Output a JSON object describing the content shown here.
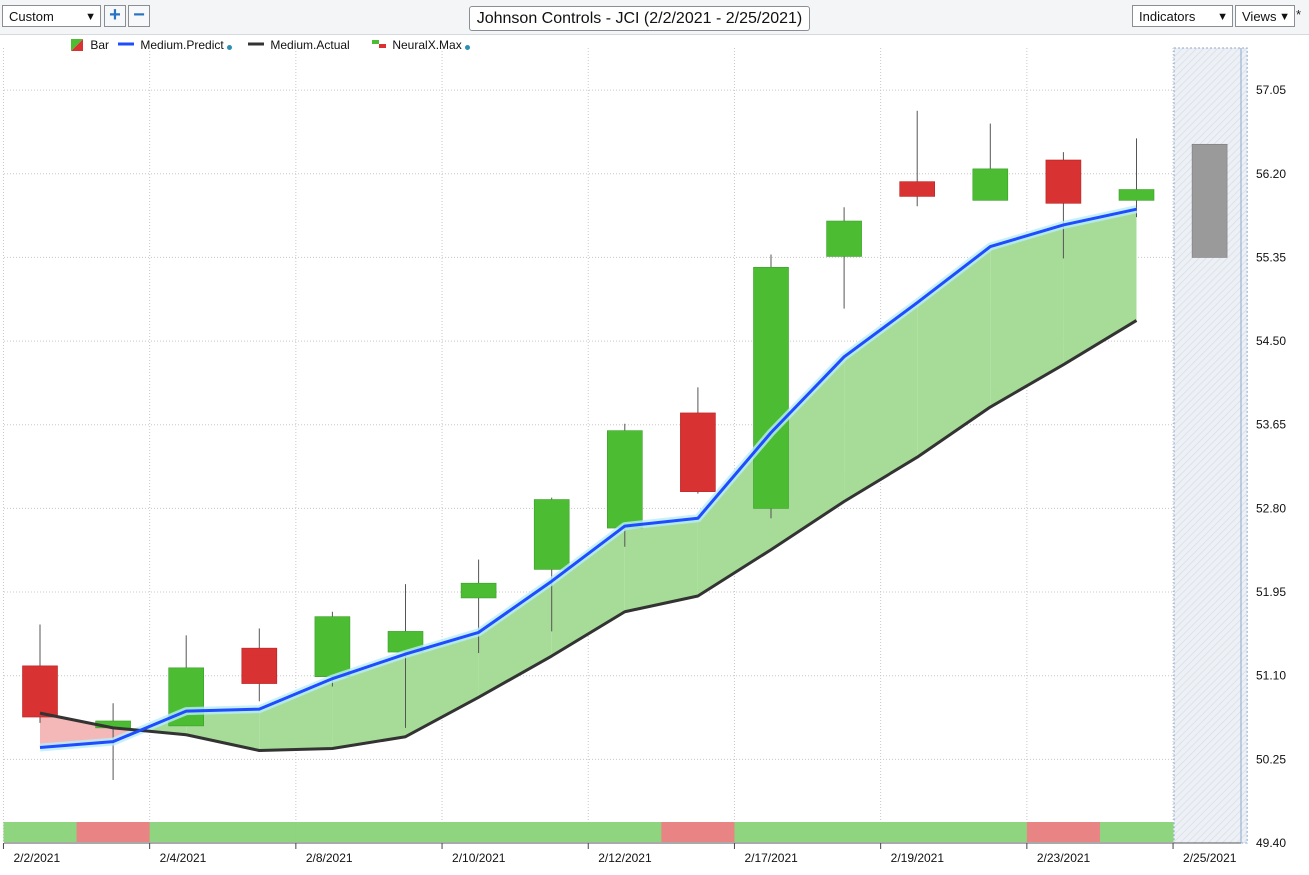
{
  "toolbar": {
    "view_select": "Custom",
    "add_label": "+",
    "remove_label": "−",
    "chart_title": "Johnson Controls - JCI (2/2/2021 - 2/25/2021)",
    "indicators_label": "Indicators",
    "views_label": "Views",
    "modified_mark": "*",
    "dropdown_arrow": "▼"
  },
  "legend": [
    {
      "label": "Bar",
      "icon": "bar-swatch-icon",
      "color": "#4cbd33",
      "color2": "#d93232",
      "dot": false
    },
    {
      "label": "Medium.Predict",
      "icon": "line-swatch-icon",
      "color": "#1f4cff",
      "dot": true
    },
    {
      "label": "Medium.Actual",
      "icon": "line-swatch-icon",
      "color": "#333333",
      "dot": false
    },
    {
      "label": "NeuralX.Max",
      "icon": "neuralx-swatch-icon",
      "color": "#4cbd33",
      "color2": "#d93232",
      "dot": true
    }
  ],
  "colors": {
    "up": "#4cbd33",
    "down": "#d93232",
    "predict": "#1f4cff",
    "actual": "#333333",
    "fill_up": "#a6dc97",
    "fill_down": "#f4b8b8",
    "forecast_bar": "#9a9a9a",
    "strip_up": "#8fd47f",
    "strip_down": "#e88484"
  },
  "chart_data": {
    "type": "candlestick",
    "title": "Johnson Controls - JCI (2/2/2021 - 2/25/2021)",
    "ylim": [
      49.4,
      57.6
    ],
    "y_ticks": [
      "57.05",
      "56.20",
      "55.35",
      "54.50",
      "53.65",
      "52.80",
      "51.95",
      "51.10",
      "50.25",
      "49.40"
    ],
    "x_ticks": [
      {
        "index": 0,
        "label": "2/2/2021"
      },
      {
        "index": 2,
        "label": "2/4/2021"
      },
      {
        "index": 4,
        "label": "2/8/2021"
      },
      {
        "index": 6,
        "label": "2/10/2021"
      },
      {
        "index": 8,
        "label": "2/12/2021"
      },
      {
        "index": 10,
        "label": "2/17/2021"
      },
      {
        "index": 12,
        "label": "2/19/2021"
      },
      {
        "index": 14,
        "label": "2/23/2021"
      },
      {
        "index": 16,
        "label": "2/25/2021"
      }
    ],
    "candles": [
      {
        "open": 51.2,
        "high": 51.62,
        "low": 50.62,
        "close": 50.68,
        "dir": "down"
      },
      {
        "open": 50.57,
        "high": 50.82,
        "low": 50.04,
        "close": 50.64,
        "dir": "up"
      },
      {
        "open": 50.59,
        "high": 51.51,
        "low": 50.59,
        "close": 51.18,
        "dir": "up"
      },
      {
        "open": 51.38,
        "high": 51.58,
        "low": 50.84,
        "close": 51.02,
        "dir": "down"
      },
      {
        "open": 51.09,
        "high": 51.75,
        "low": 50.99,
        "close": 51.7,
        "dir": "up"
      },
      {
        "open": 51.34,
        "high": 52.03,
        "low": 50.57,
        "close": 51.55,
        "dir": "up"
      },
      {
        "open": 51.89,
        "high": 52.28,
        "low": 51.33,
        "close": 52.04,
        "dir": "up"
      },
      {
        "open": 52.18,
        "high": 52.91,
        "low": 51.55,
        "close": 52.89,
        "dir": "up"
      },
      {
        "open": 52.6,
        "high": 53.66,
        "low": 52.41,
        "close": 53.59,
        "dir": "up"
      },
      {
        "open": 53.77,
        "high": 54.03,
        "low": 52.95,
        "close": 52.97,
        "dir": "down"
      },
      {
        "open": 52.8,
        "high": 55.38,
        "low": 52.7,
        "close": 55.25,
        "dir": "up"
      },
      {
        "open": 55.36,
        "high": 55.86,
        "low": 54.83,
        "close": 55.72,
        "dir": "up"
      },
      {
        "open": 56.12,
        "high": 56.84,
        "low": 55.87,
        "close": 55.97,
        "dir": "down"
      },
      {
        "open": 55.93,
        "high": 56.71,
        "low": 55.93,
        "close": 56.25,
        "dir": "up"
      },
      {
        "open": 56.34,
        "high": 56.42,
        "low": 55.34,
        "close": 55.9,
        "dir": "down"
      },
      {
        "open": 55.93,
        "high": 56.56,
        "low": 55.76,
        "close": 56.04,
        "dir": "up"
      }
    ],
    "forecast_bar": {
      "index": 16,
      "high": 56.5,
      "low": 55.35
    },
    "series": [
      {
        "name": "Medium.Predict",
        "values": [
          50.37,
          50.43,
          50.74,
          50.76,
          51.07,
          51.32,
          51.54,
          52.06,
          52.62,
          52.7,
          53.57,
          54.34,
          54.89,
          55.46,
          55.68,
          55.84
        ]
      },
      {
        "name": "Medium.Actual",
        "values": [
          50.72,
          50.57,
          50.5,
          50.34,
          50.36,
          50.48,
          50.88,
          51.3,
          51.75,
          51.91,
          52.38,
          52.87,
          53.32,
          53.83,
          54.26,
          54.71
        ]
      }
    ],
    "signal_strip": [
      "up",
      "down",
      "up",
      "up",
      "up",
      "up",
      "up",
      "up",
      "up",
      "down",
      "up",
      "up",
      "up",
      "up",
      "down",
      "up"
    ],
    "grid": true
  }
}
